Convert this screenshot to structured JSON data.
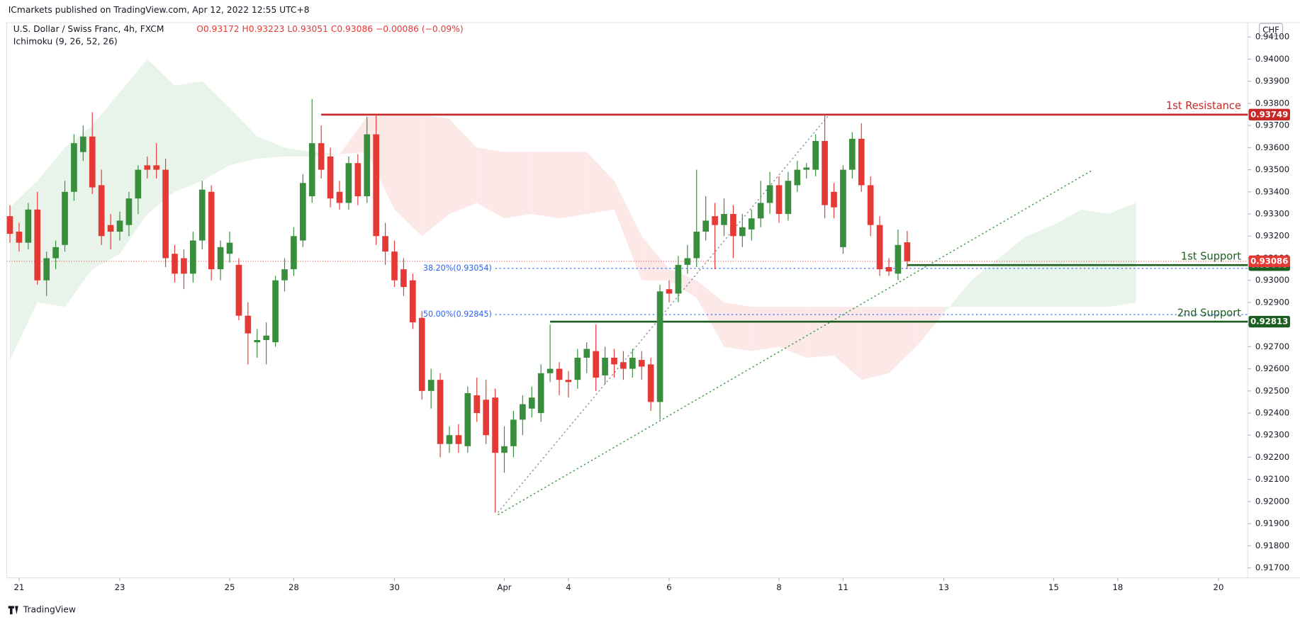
{
  "chart_data": {
    "type": "candlestick",
    "published": "ICmarkets published on TradingView.com, Apr 12, 2022 12:55 UTC+8",
    "title": "U.S. Dollar / Swiss Franc, 4h, FXCM",
    "ohlc_text": "O0.93172 H0.93223 L0.93051 C0.93086 −0.00086 (−0.09%)",
    "indicator": "Ichimoku (9, 26, 52, 26)",
    "currency": "CHF",
    "brand": "TradingView",
    "up_color": "#388e3c",
    "down_color": "#e53935",
    "cloud_up_color": "#e8f3ea",
    "cloud_down_color": "#fde8e8",
    "xlim": [
      -0.36,
      135.2
    ],
    "ylim": [
      0.91655,
      0.94165
    ],
    "xticks": [
      {
        "value": 1,
        "label": "21"
      },
      {
        "value": 12,
        "label": "23"
      },
      {
        "value": 24,
        "label": "25"
      },
      {
        "value": 31,
        "label": "28"
      },
      {
        "value": 42,
        "label": "30"
      },
      {
        "value": 54,
        "label": "Apr"
      },
      {
        "value": 61,
        "label": "4"
      },
      {
        "value": 72,
        "label": "6"
      },
      {
        "value": 84,
        "label": "8"
      },
      {
        "value": 91,
        "label": "11"
      },
      {
        "value": 102,
        "label": "13"
      },
      {
        "value": 114,
        "label": "15"
      },
      {
        "value": 121,
        "label": "18"
      },
      {
        "value": 132,
        "label": "20"
      }
    ],
    "yticks": [
      {
        "value": 0.917,
        "label": "0.91700"
      },
      {
        "value": 0.918,
        "label": "0.91800"
      },
      {
        "value": 0.919,
        "label": "0.91900"
      },
      {
        "value": 0.92,
        "label": "0.92000"
      },
      {
        "value": 0.921,
        "label": "0.92100"
      },
      {
        "value": 0.922,
        "label": "0.92200"
      },
      {
        "value": 0.923,
        "label": "0.92300"
      },
      {
        "value": 0.924,
        "label": "0.92400"
      },
      {
        "value": 0.925,
        "label": "0.92500"
      },
      {
        "value": 0.926,
        "label": "0.92600"
      },
      {
        "value": 0.927,
        "label": "0.92700"
      },
      {
        "value": 0.928,
        "label": "0.92800"
      },
      {
        "value": 0.929,
        "label": "0.92900"
      },
      {
        "value": 0.93,
        "label": "0.93000"
      },
      {
        "value": 0.931,
        "label": "0.93100"
      },
      {
        "value": 0.932,
        "label": "0.93200"
      },
      {
        "value": 0.933,
        "label": "0.93300"
      },
      {
        "value": 0.934,
        "label": "0.93400"
      },
      {
        "value": 0.935,
        "label": "0.93500"
      },
      {
        "value": 0.936,
        "label": "0.93600"
      },
      {
        "value": 0.937,
        "label": "0.93700"
      },
      {
        "value": 0.938,
        "label": "0.93800"
      },
      {
        "value": 0.939,
        "label": "0.93900"
      },
      {
        "value": 0.94,
        "label": "0.94000"
      },
      {
        "value": 0.941,
        "label": "0.94100"
      }
    ],
    "ohlc": [
      [
        0.9329,
        0.9334,
        0.9317,
        0.9321
      ],
      [
        0.9322,
        0.9326,
        0.9313,
        0.9317
      ],
      [
        0.9317,
        0.9335,
        0.9314,
        0.9332
      ],
      [
        0.9332,
        0.934,
        0.9298,
        0.93
      ],
      [
        0.93,
        0.9313,
        0.9293,
        0.931
      ],
      [
        0.931,
        0.9318,
        0.9305,
        0.9315
      ],
      [
        0.9316,
        0.9345,
        0.9313,
        0.934
      ],
      [
        0.934,
        0.9366,
        0.9336,
        0.9362
      ],
      [
        0.9358,
        0.937,
        0.9354,
        0.9365
      ],
      [
        0.9365,
        0.9376,
        0.9339,
        0.9342
      ],
      [
        0.9343,
        0.935,
        0.9316,
        0.932
      ],
      [
        0.9325,
        0.933,
        0.9314,
        0.9322
      ],
      [
        0.9322,
        0.9331,
        0.9318,
        0.9327
      ],
      [
        0.9325,
        0.934,
        0.932,
        0.9337
      ],
      [
        0.9337,
        0.9352,
        0.933,
        0.935
      ],
      [
        0.9352,
        0.9356,
        0.9346,
        0.935
      ],
      [
        0.9352,
        0.9362,
        0.9346,
        0.935
      ],
      [
        0.935,
        0.9355,
        0.9306,
        0.931
      ],
      [
        0.9312,
        0.9316,
        0.9299,
        0.9303
      ],
      [
        0.931,
        0.9314,
        0.9296,
        0.9303
      ],
      [
        0.9303,
        0.9322,
        0.9299,
        0.9318
      ],
      [
        0.9318,
        0.9345,
        0.9314,
        0.9341
      ],
      [
        0.934,
        0.9343,
        0.93,
        0.9305
      ],
      [
        0.9305,
        0.9318,
        0.93,
        0.9315
      ],
      [
        0.9312,
        0.9322,
        0.9308,
        0.9317
      ],
      [
        0.9307,
        0.931,
        0.9282,
        0.9284
      ],
      [
        0.9284,
        0.929,
        0.9262,
        0.9276
      ],
      [
        0.9272,
        0.9278,
        0.9265,
        0.9273
      ],
      [
        0.9273,
        0.9281,
        0.9262,
        0.9275
      ],
      [
        0.9272,
        0.9302,
        0.927,
        0.93
      ],
      [
        0.93,
        0.931,
        0.9295,
        0.9305
      ],
      [
        0.9305,
        0.9324,
        0.9302,
        0.932
      ],
      [
        0.9318,
        0.9348,
        0.9315,
        0.9344
      ],
      [
        0.9338,
        0.9382,
        0.9335,
        0.9362
      ],
      [
        0.9362,
        0.937,
        0.9346,
        0.935
      ],
      [
        0.9356,
        0.936,
        0.9333,
        0.9337
      ],
      [
        0.934,
        0.9345,
        0.9332,
        0.9335
      ],
      [
        0.9335,
        0.9356,
        0.9332,
        0.9353
      ],
      [
        0.9353,
        0.9357,
        0.9334,
        0.9338
      ],
      [
        0.9338,
        0.9374,
        0.9335,
        0.9366
      ],
      [
        0.9366,
        0.9375,
        0.9316,
        0.932
      ],
      [
        0.932,
        0.9326,
        0.9307,
        0.9313
      ],
      [
        0.9313,
        0.9318,
        0.9297,
        0.93
      ],
      [
        0.9305,
        0.931,
        0.9293,
        0.9297
      ],
      [
        0.93,
        0.9303,
        0.9278,
        0.9281
      ],
      [
        0.9283,
        0.9286,
        0.9246,
        0.925
      ],
      [
        0.925,
        0.926,
        0.9242,
        0.9255
      ],
      [
        0.9255,
        0.9258,
        0.922,
        0.9226
      ],
      [
        0.9226,
        0.9234,
        0.9222,
        0.923
      ],
      [
        0.923,
        0.9235,
        0.9222,
        0.9226
      ],
      [
        0.9225,
        0.9252,
        0.9222,
        0.9249
      ],
      [
        0.9248,
        0.9256,
        0.9236,
        0.924
      ],
      [
        0.9246,
        0.9255,
        0.9226,
        0.923
      ],
      [
        0.9247,
        0.9251,
        0.9195,
        0.9222
      ],
      [
        0.9222,
        0.9234,
        0.9213,
        0.9225
      ],
      [
        0.9225,
        0.9241,
        0.922,
        0.9237
      ],
      [
        0.9237,
        0.9248,
        0.923,
        0.9244
      ],
      [
        0.9242,
        0.9252,
        0.9238,
        0.9247
      ],
      [
        0.924,
        0.9262,
        0.9236,
        0.9258
      ],
      [
        0.9258,
        0.928,
        0.9254,
        0.926
      ],
      [
        0.926,
        0.9263,
        0.9248,
        0.9255
      ],
      [
        0.9255,
        0.9259,
        0.9247,
        0.9254
      ],
      [
        0.9255,
        0.9269,
        0.9251,
        0.9265
      ],
      [
        0.9265,
        0.9272,
        0.9258,
        0.9269
      ],
      [
        0.9268,
        0.928,
        0.925,
        0.9256
      ],
      [
        0.9257,
        0.927,
        0.9253,
        0.9265
      ],
      [
        0.9265,
        0.9269,
        0.9256,
        0.9262
      ],
      [
        0.9263,
        0.9268,
        0.9255,
        0.926
      ],
      [
        0.926,
        0.9269,
        0.9256,
        0.9265
      ],
      [
        0.9264,
        0.9268,
        0.9255,
        0.9261
      ],
      [
        0.9262,
        0.9265,
        0.9241,
        0.9245
      ],
      [
        0.9245,
        0.9298,
        0.9237,
        0.9295
      ],
      [
        0.9296,
        0.93,
        0.929,
        0.9294
      ],
      [
        0.9294,
        0.9311,
        0.929,
        0.9307
      ],
      [
        0.9307,
        0.9316,
        0.9303,
        0.931
      ],
      [
        0.931,
        0.935,
        0.9306,
        0.9322
      ],
      [
        0.9322,
        0.9338,
        0.9318,
        0.9327
      ],
      [
        0.9329,
        0.9335,
        0.9305,
        0.9325
      ],
      [
        0.9325,
        0.9337,
        0.932,
        0.933
      ],
      [
        0.933,
        0.9334,
        0.931,
        0.932
      ],
      [
        0.932,
        0.933,
        0.9315,
        0.9324
      ],
      [
        0.9323,
        0.9332,
        0.9318,
        0.9328
      ],
      [
        0.9328,
        0.9345,
        0.9324,
        0.9335
      ],
      [
        0.9335,
        0.9349,
        0.933,
        0.9343
      ],
      [
        0.9343,
        0.9347,
        0.9326,
        0.933
      ],
      [
        0.933,
        0.9349,
        0.9327,
        0.9345
      ],
      [
        0.9343,
        0.9354,
        0.934,
        0.935
      ],
      [
        0.935,
        0.9353,
        0.9346,
        0.9351
      ],
      [
        0.935,
        0.9366,
        0.9347,
        0.9363
      ],
      [
        0.9363,
        0.9375,
        0.9328,
        0.9334
      ],
      [
        0.934,
        0.9344,
        0.9328,
        0.9333
      ],
      [
        0.9315,
        0.9352,
        0.9312,
        0.935
      ],
      [
        0.935,
        0.9367,
        0.9346,
        0.9364
      ],
      [
        0.9364,
        0.9371,
        0.934,
        0.9343
      ],
      [
        0.9343,
        0.9347,
        0.932,
        0.9325
      ],
      [
        0.9325,
        0.9329,
        0.9302,
        0.9305
      ],
      [
        0.9306,
        0.931,
        0.9302,
        0.9304
      ],
      [
        0.9303,
        0.9323,
        0.93,
        0.9316
      ],
      [
        0.93172,
        0.93223,
        0.93051,
        0.93086
      ]
    ],
    "cloud": {
      "x": [
        0,
        3,
        6,
        9,
        12,
        15,
        18,
        21,
        24,
        27,
        30,
        33,
        36,
        39,
        42,
        45,
        48,
        51,
        54,
        57,
        60,
        63,
        66,
        69,
        72,
        75,
        78,
        81,
        84,
        87,
        90,
        93,
        96,
        99,
        102,
        105,
        108,
        111,
        114,
        117,
        120,
        123
      ],
      "span_a": [
        0.9333,
        0.9345,
        0.936,
        0.937,
        0.9385,
        0.94,
        0.9388,
        0.939,
        0.9378,
        0.9365,
        0.936,
        0.9358,
        0.9357,
        0.9358,
        0.9332,
        0.932,
        0.933,
        0.9335,
        0.9328,
        0.933,
        0.9328,
        0.933,
        0.9332,
        0.93,
        0.93,
        0.9292,
        0.927,
        0.9268,
        0.927,
        0.9265,
        0.9266,
        0.9255,
        0.9258,
        0.927,
        0.9285,
        0.93,
        0.931,
        0.932,
        0.9325,
        0.9332,
        0.933,
        0.9335
      ],
      "span_b": [
        0.9264,
        0.929,
        0.9288,
        0.9305,
        0.9312,
        0.933,
        0.934,
        0.9345,
        0.9352,
        0.9355,
        0.9356,
        0.9356,
        0.9357,
        0.9374,
        0.9375,
        0.9375,
        0.9373,
        0.936,
        0.9358,
        0.9358,
        0.9358,
        0.9358,
        0.9345,
        0.932,
        0.9305,
        0.93,
        0.929,
        0.9288,
        0.9288,
        0.9288,
        0.9288,
        0.9288,
        0.9288,
        0.9288,
        0.9288,
        0.9288,
        0.9288,
        0.9288,
        0.9288,
        0.9288,
        0.9288,
        0.929
      ]
    },
    "levels": [
      {
        "label": "1st Resistance",
        "value": 0.93749,
        "from": 34,
        "color": "#c62828"
      },
      {
        "label": "1st Support",
        "value": 0.93069,
        "from": 98,
        "color": "#1b5e20"
      },
      {
        "label": "2nd Support",
        "value": 0.92813,
        "from": 59,
        "color": "#1b5e20"
      }
    ],
    "fib_levels": [
      {
        "label": "38.20%(0.93054)",
        "value": 0.93054
      },
      {
        "label": "50.00%(0.92845)",
        "value": 0.92845
      }
    ],
    "fib_from": 53,
    "fib_color": "#2962ff",
    "price_color": "#e53935",
    "trend_lines": [
      {
        "points": [
          [
            53.3,
            0.9194
          ],
          [
            118.3,
            0.935
          ]
        ],
        "color": "#43a047"
      },
      {
        "points": [
          [
            53.3,
            0.9195
          ],
          [
            89.5,
            0.9375
          ]
        ],
        "color": "#9598a1"
      }
    ]
  }
}
